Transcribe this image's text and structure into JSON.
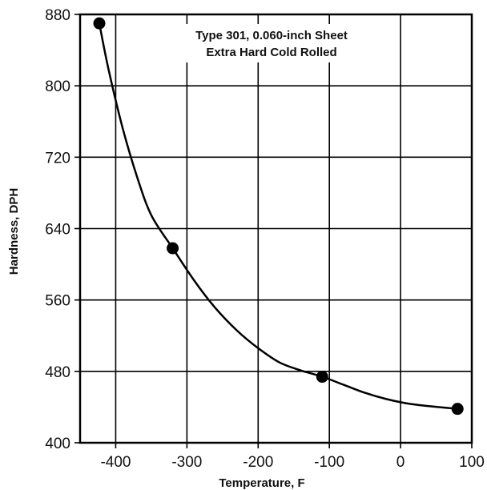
{
  "chart_data": {
    "type": "scatter",
    "title": "",
    "annotation": [
      "Type 301, 0.060-inch Sheet",
      "Extra Hard Cold Rolled"
    ],
    "xlabel": "Temperature, F",
    "ylabel": "Hardness, DPH",
    "xlim": [
      -450,
      100
    ],
    "ylim": [
      400,
      880
    ],
    "xticks": [
      -400,
      -300,
      -200,
      -100,
      0,
      100
    ],
    "yticks": [
      400,
      480,
      560,
      640,
      720,
      800,
      880
    ],
    "grid": true,
    "legend": "none",
    "series": [
      {
        "x": [
          -423,
          -320,
          -110,
          80
        ],
        "y": [
          870,
          618,
          474,
          438
        ]
      }
    ],
    "fit_curve": {
      "x": [
        -423,
        -410,
        -390,
        -370,
        -350,
        -320,
        -290,
        -260,
        -230,
        -200,
        -170,
        -140,
        -110,
        -80,
        -50,
        -20,
        10,
        40,
        80
      ],
      "y": [
        870,
        818,
        752,
        698,
        655,
        618,
        582,
        551,
        526,
        506,
        490,
        481,
        474,
        465,
        456,
        449,
        444,
        441,
        438
      ]
    },
    "colors": {
      "line": "#000000",
      "grid": "#000000",
      "marker": "#000000"
    }
  }
}
